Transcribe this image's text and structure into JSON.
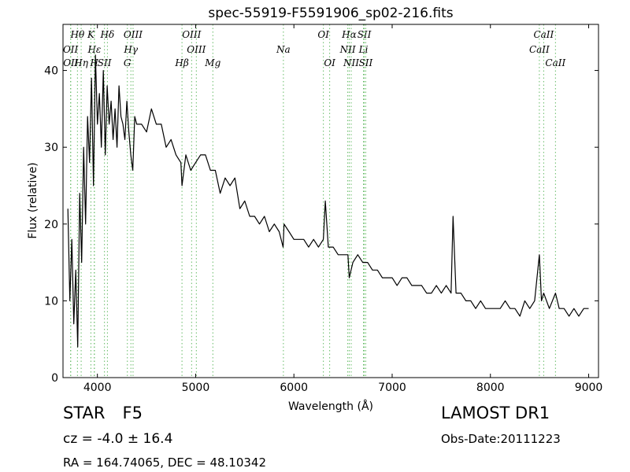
{
  "chart_data": {
    "type": "line",
    "title": "spec-55919-F5591906_sp02-216.fits",
    "xlabel": "Wavelength (Å)",
    "ylabel": "Flux (relative)",
    "xlim": [
      3650,
      9100
    ],
    "ylim": [
      0,
      46
    ],
    "xticks": [
      4000,
      5000,
      6000,
      7000,
      8000,
      9000
    ],
    "yticks": [
      0,
      10,
      20,
      30,
      40
    ],
    "grid": false,
    "legend": "none",
    "line_color": "#000000",
    "marker_color": "#66bb66",
    "series": [
      {
        "values_note": "",
        "x": [
          3700,
          3720,
          3740,
          3760,
          3780,
          3800,
          3820,
          3840,
          3860,
          3880,
          3900,
          3920,
          3940,
          3960,
          3980,
          4000,
          4020,
          4040,
          4060,
          4080,
          4100,
          4120,
          4140,
          4160,
          4180,
          4200,
          4220,
          4240,
          4260,
          4280,
          4300,
          4320,
          4340,
          4360,
          4380,
          4400,
          4450,
          4500,
          4550,
          4600,
          4650,
          4700,
          4750,
          4800,
          4850,
          4861,
          4900,
          4950,
          5000,
          5050,
          5100,
          5150,
          5200,
          5250,
          5300,
          5350,
          5400,
          5450,
          5500,
          5550,
          5600,
          5650,
          5700,
          5750,
          5800,
          5850,
          5890,
          5900,
          5950,
          6000,
          6050,
          6100,
          6150,
          6200,
          6250,
          6300,
          6320,
          6350,
          6400,
          6450,
          6500,
          6550,
          6563,
          6600,
          6650,
          6700,
          6750,
          6800,
          6850,
          6900,
          6950,
          7000,
          7050,
          7100,
          7150,
          7200,
          7250,
          7300,
          7350,
          7400,
          7450,
          7500,
          7550,
          7600,
          7620,
          7650,
          7700,
          7750,
          7800,
          7850,
          7900,
          7950,
          8000,
          8050,
          8100,
          8150,
          8200,
          8250,
          8300,
          8350,
          8400,
          8450,
          8498,
          8520,
          8542,
          8600,
          8662,
          8700,
          8750,
          8800,
          8850,
          8900,
          8950,
          9000
        ],
        "y": [
          22,
          10,
          18,
          7,
          14,
          4,
          24,
          15,
          30,
          20,
          34,
          28,
          39,
          25,
          42,
          33,
          37,
          30,
          40,
          29,
          38,
          33,
          36,
          31,
          35,
          30,
          38,
          34,
          33,
          31,
          36,
          32,
          29,
          27,
          34,
          33,
          33,
          32,
          35,
          33,
          33,
          30,
          31,
          29,
          28,
          25,
          29,
          27,
          28,
          29,
          29,
          27,
          27,
          24,
          26,
          25,
          26,
          22,
          23,
          21,
          21,
          20,
          21,
          19,
          20,
          19,
          17,
          20,
          19,
          18,
          18,
          18,
          17,
          18,
          17,
          18,
          23,
          17,
          17,
          16,
          16,
          16,
          13,
          15,
          16,
          15,
          15,
          14,
          14,
          13,
          13,
          13,
          12,
          13,
          13,
          12,
          12,
          12,
          11,
          11,
          12,
          11,
          12,
          11,
          21,
          11,
          11,
          10,
          10,
          9,
          10,
          9,
          9,
          9,
          9,
          10,
          9,
          9,
          8,
          10,
          9,
          10,
          16,
          10,
          11,
          9,
          11,
          9,
          9,
          8,
          9,
          8,
          9,
          9
        ]
      }
    ],
    "line_markers": {
      "top": [
        {
          "label": "Hθ",
          "x": 3797,
          "row": 1
        },
        {
          "label": "K",
          "x": 3934,
          "row": 1
        },
        {
          "label": "Hδ",
          "x": 4102,
          "row": 1
        },
        {
          "label": "OIII",
          "x": 4363,
          "row": 1
        },
        {
          "label": "OIII",
          "x": 4959,
          "row": 1
        },
        {
          "label": "OI",
          "x": 6300,
          "row": 1
        },
        {
          "label": "Hα",
          "x": 6563,
          "row": 1
        },
        {
          "label": "SII",
          "x": 6716,
          "row": 1
        },
        {
          "label": "CaII",
          "x": 8542,
          "row": 1
        },
        {
          "label": "OII",
          "x": 3727,
          "row": 2
        },
        {
          "label": "Hε",
          "x": 3970,
          "row": 2
        },
        {
          "label": "Hγ",
          "x": 4341,
          "row": 2
        },
        {
          "label": "OIII",
          "x": 5007,
          "row": 2
        },
        {
          "label": "Na",
          "x": 5893,
          "row": 2
        },
        {
          "label": "NII",
          "x": 6548,
          "row": 2
        },
        {
          "label": "Li",
          "x": 6708,
          "row": 2
        },
        {
          "label": "CaII",
          "x": 8498,
          "row": 2
        },
        {
          "label": "OII",
          "x": 3729,
          "row": 3
        },
        {
          "label": "Hη",
          "x": 3835,
          "row": 3
        },
        {
          "label": "H",
          "x": 3968,
          "row": 3
        },
        {
          "label": "SII",
          "x": 4072,
          "row": 3
        },
        {
          "label": "G",
          "x": 4305,
          "row": 3
        },
        {
          "label": "Hβ",
          "x": 4861,
          "row": 3
        },
        {
          "label": "Mg",
          "x": 5175,
          "row": 3
        },
        {
          "label": "OI",
          "x": 6364,
          "row": 3
        },
        {
          "label": "NII",
          "x": 6583,
          "row": 3
        },
        {
          "label": "SII",
          "x": 6731,
          "row": 3
        },
        {
          "label": "CaII",
          "x": 8662,
          "row": 3
        }
      ]
    }
  },
  "info": {
    "class_label": "STAR",
    "subclass": "F5",
    "survey": "LAMOST DR1",
    "cz": "cz = -4.0  ± 16.4",
    "obs_date": "Obs-Date:20111223",
    "radec": "RA = 164.74065, DEC = 48.10342"
  }
}
